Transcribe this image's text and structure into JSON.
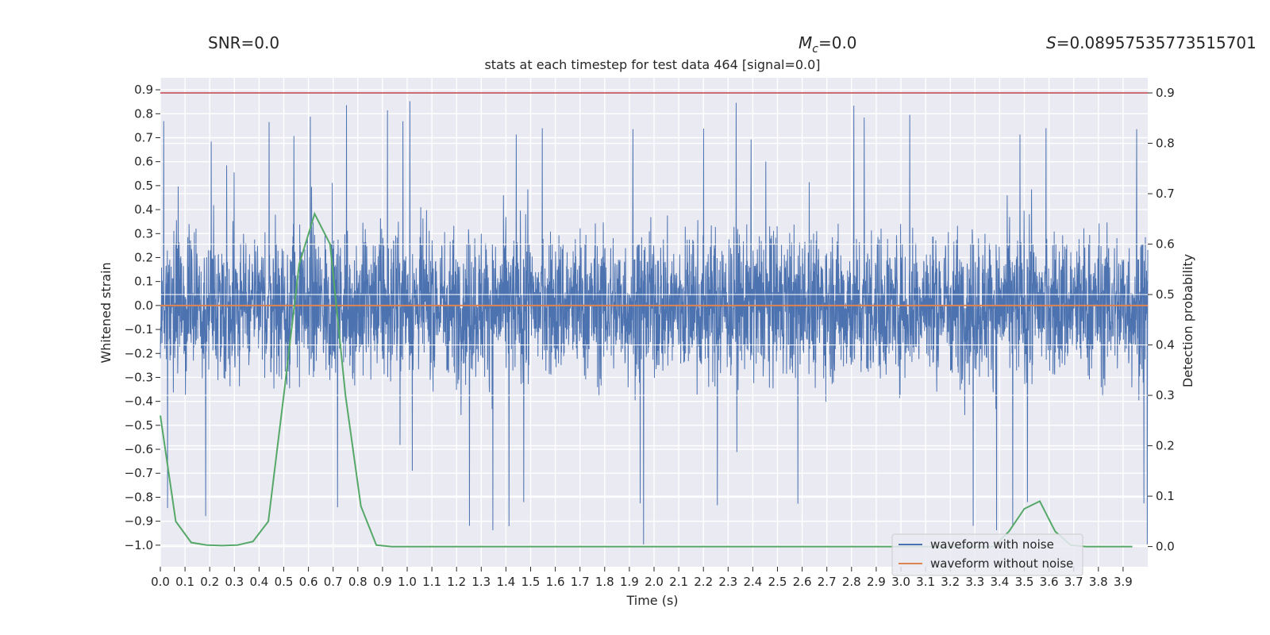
{
  "header": {
    "snr": "SNR=0.0",
    "mc_symbol": "M",
    "mc_sub": "c",
    "mc_value": "=0.0",
    "s_symbol": "S",
    "s_value": "=0.08957535773515701"
  },
  "chart_data": {
    "type": "line",
    "title": "stats at each timestep for test data 464 [signal=0.0]",
    "xlabel": "Time (s)",
    "ylabel": "Whitened strain",
    "y2label": "Detection probability",
    "xlim": [
      0.0,
      4.0
    ],
    "ylim": [
      -1.09,
      0.95
    ],
    "y2lim": [
      -0.04,
      0.93
    ],
    "x_ticks": [
      "0.0",
      "0.1",
      "0.2",
      "0.3",
      "0.4",
      "0.5",
      "0.6",
      "0.7",
      "0.8",
      "0.9",
      "1.0",
      "1.1",
      "1.2",
      "1.3",
      "1.4",
      "1.5",
      "1.6",
      "1.7",
      "1.8",
      "1.9",
      "2.0",
      "2.1",
      "2.2",
      "2.3",
      "2.4",
      "2.5",
      "2.6",
      "2.7",
      "2.8",
      "2.9",
      "3.0",
      "3.1",
      "3.2",
      "3.3",
      "3.4",
      "3.5",
      "3.6",
      "3.7",
      "3.8",
      "3.9"
    ],
    "y_ticks": [
      "0.9",
      "0.8",
      "0.7",
      "0.6",
      "0.5",
      "0.4",
      "0.3",
      "0.2",
      "0.1",
      "0.0",
      "−0.1",
      "−0.2",
      "−0.3",
      "−0.4",
      "−0.5",
      "−0.6",
      "−0.7",
      "−0.8",
      "−0.9",
      "−1.0"
    ],
    "y2_ticks": [
      "0.9",
      "0.8",
      "0.7",
      "0.6",
      "0.5",
      "0.4",
      "0.3",
      "0.2",
      "0.1",
      "0.0"
    ],
    "threshold": 0.9,
    "series": [
      {
        "name": "waveform with noise",
        "color": "#4c72b0",
        "kind": "noise",
        "envelope": 0.25,
        "spike_max": 0.86,
        "spike_min": -1.0
      },
      {
        "name": "waveform without noise",
        "color": "#dd8452",
        "x": [
          0.0,
          4.0
        ],
        "y": [
          0.0,
          0.0
        ]
      },
      {
        "name": "",
        "color": "#55a868",
        "axis": "right",
        "x": [
          0.0,
          0.0625,
          0.125,
          0.1875,
          0.25,
          0.3125,
          0.375,
          0.4375,
          0.5,
          0.5625,
          0.625,
          0.6875,
          0.75,
          0.8125,
          0.875,
          0.9375,
          1.0,
          3.375,
          3.4375,
          3.5,
          3.5625,
          3.625,
          3.6875,
          3.75,
          3.8125,
          3.875,
          3.9375
        ],
        "y": [
          0.26,
          0.05,
          0.008,
          0.003,
          0.002,
          0.003,
          0.01,
          0.05,
          0.3,
          0.56,
          0.66,
          0.6,
          0.3,
          0.08,
          0.003,
          0.0,
          0.0,
          0.0,
          0.03,
          0.075,
          0.09,
          0.03,
          0.003,
          0.0,
          0.0,
          0.0,
          0.0
        ]
      },
      {
        "name": "",
        "color": "#c44e52",
        "axis": "right",
        "kind": "threshold"
      }
    ],
    "colors": {
      "background": "#eaeaf2",
      "grid": "#ffffff",
      "noise": "#4c72b0",
      "clean": "#dd8452",
      "prob": "#55a868",
      "threshold": "#c44e52"
    },
    "legend": "lower-right",
    "grid": true
  }
}
